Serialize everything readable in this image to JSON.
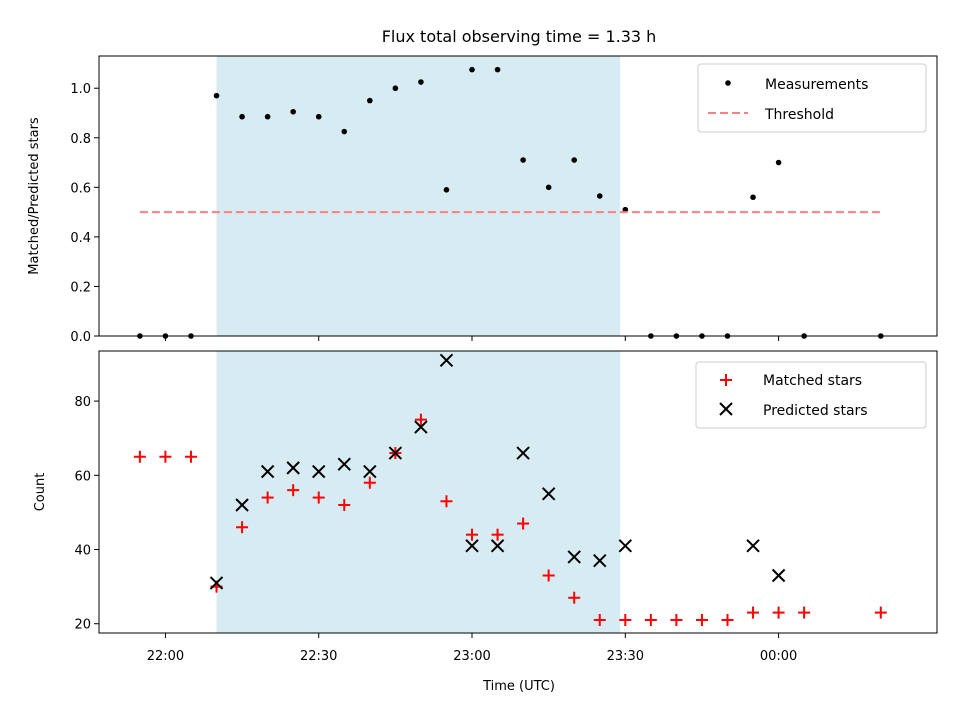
{
  "chart_data": [
    {
      "type": "scatter",
      "title": "Flux total observing time = 1.33 h",
      "ylabel": "Matched/Predicted stars",
      "xlabel": "",
      "x_unit": "time",
      "xlim": [
        "21:47",
        "24:31"
      ],
      "ylim": [
        0,
        1.13
      ],
      "yticks": [
        0.0,
        0.2,
        0.4,
        0.6,
        0.8,
        1.0
      ],
      "ytick_labels": [
        "0.0",
        "0.2",
        "0.4",
        "0.6",
        "0.8",
        "1.0"
      ],
      "shaded_span": {
        "start": "22:10",
        "end": "23:29",
        "color": "#add8e6"
      },
      "legend_position": "top-right",
      "series": [
        {
          "name": "Measurements",
          "kind": "dots",
          "color": "#000000",
          "x": [
            "21:55",
            "22:00",
            "22:05",
            "22:10",
            "22:15",
            "22:20",
            "22:25",
            "22:30",
            "22:35",
            "22:40",
            "22:45",
            "22:50",
            "22:55",
            "23:00",
            "23:05",
            "23:10",
            "23:15",
            "23:20",
            "23:25",
            "23:30",
            "23:35",
            "23:40",
            "23:45",
            "23:50",
            "23:55",
            "24:00",
            "24:05",
            "24:20"
          ],
          "y": [
            0,
            0,
            0,
            0.97,
            0.885,
            0.885,
            0.905,
            0.885,
            0.825,
            0.95,
            1.0,
            1.025,
            0.59,
            1.075,
            1.075,
            0.71,
            0.6,
            0.71,
            0.565,
            0.51,
            0,
            0,
            0,
            0,
            0.56,
            0.7,
            0,
            0
          ]
        },
        {
          "name": "Threshold",
          "kind": "dashed-line",
          "color": "#ff7f7f",
          "x": [
            "21:55",
            "24:20"
          ],
          "y": [
            0.5,
            0.5
          ]
        }
      ]
    },
    {
      "type": "scatter",
      "title": "",
      "ylabel": "Count",
      "xlabel": "Time (UTC)",
      "x_unit": "time",
      "xlim": [
        "21:47",
        "24:31"
      ],
      "ylim": [
        17.5,
        93.5
      ],
      "yticks": [
        20,
        40,
        60,
        80
      ],
      "ytick_labels": [
        "20",
        "40",
        "60",
        "80"
      ],
      "xticks": [
        "22:00",
        "22:30",
        "23:00",
        "23:30",
        "24:00"
      ],
      "xtick_labels": [
        "22:00",
        "22:30",
        "23:00",
        "23:30",
        "00:00"
      ],
      "shaded_span": {
        "start": "22:10",
        "end": "23:29",
        "color": "#add8e6"
      },
      "legend_position": "top-right",
      "series": [
        {
          "name": "Matched stars",
          "kind": "plus",
          "color": "#ff0000",
          "x": [
            "21:55",
            "22:00",
            "22:05",
            "22:10",
            "22:15",
            "22:20",
            "22:25",
            "22:30",
            "22:35",
            "22:40",
            "22:45",
            "22:50",
            "22:55",
            "23:00",
            "23:05",
            "23:10",
            "23:15",
            "23:20",
            "23:25",
            "23:30",
            "23:35",
            "23:40",
            "23:45",
            "23:50",
            "23:55",
            "24:00",
            "24:05",
            "24:20"
          ],
          "y": [
            65,
            65,
            65,
            30,
            46,
            54,
            56,
            54,
            52,
            58,
            66,
            75,
            53,
            44,
            44,
            47,
            33,
            27,
            21,
            21,
            21,
            21,
            21,
            21,
            23,
            23,
            23,
            23
          ]
        },
        {
          "name": "Predicted stars",
          "kind": "x",
          "color": "#000000",
          "x": [
            "22:10",
            "22:15",
            "22:20",
            "22:25",
            "22:30",
            "22:35",
            "22:40",
            "22:45",
            "22:50",
            "22:55",
            "23:00",
            "23:05",
            "23:10",
            "23:15",
            "23:20",
            "23:25",
            "23:30",
            "23:55",
            "24:00"
          ],
          "y": [
            31,
            52,
            61,
            62,
            61,
            63,
            61,
            66,
            73,
            91,
            41,
            41,
            66,
            55,
            38,
            37,
            41,
            41,
            33
          ]
        }
      ]
    }
  ]
}
